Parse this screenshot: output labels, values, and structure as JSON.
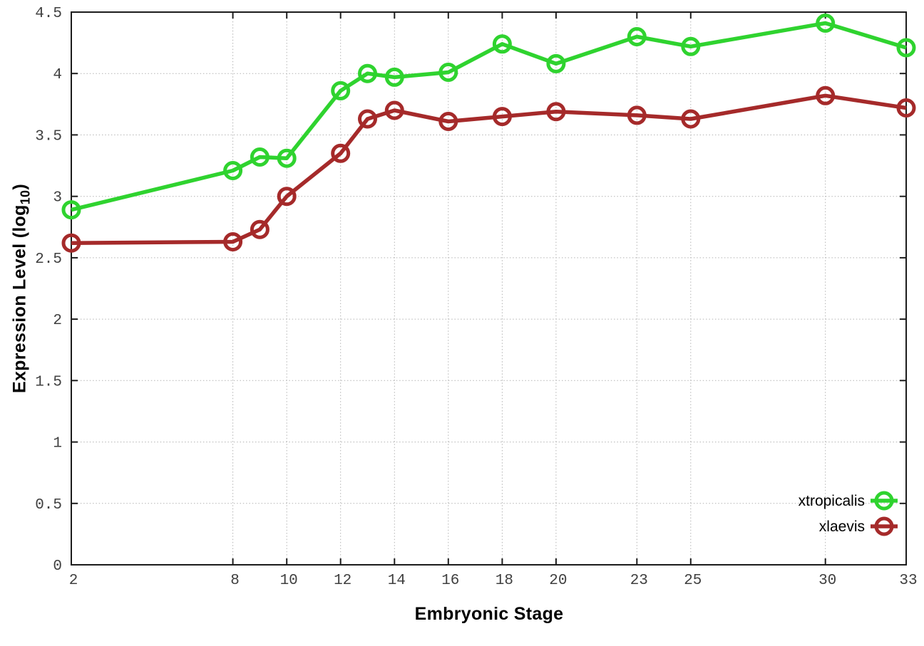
{
  "chart_data": {
    "type": "line",
    "title": "",
    "xlabel": "Embryonic Stage",
    "ylabel": {
      "prefix": "Expression Level (log",
      "sub": "10",
      "suffix": ")"
    },
    "xlim": [
      2,
      33
    ],
    "ylim": [
      0,
      4.5
    ],
    "grid": true,
    "legend_position": "inside-bottom-right",
    "x_ticks": [
      2,
      8,
      10,
      12,
      14,
      16,
      18,
      20,
      23,
      25,
      30,
      33
    ],
    "x_tick_labels": [
      "2",
      "8",
      "10",
      "12",
      "14",
      "16",
      "18",
      "20",
      "23",
      "25",
      "30",
      "33"
    ],
    "y_ticks": [
      0,
      0.5,
      1,
      1.5,
      2,
      2.5,
      3,
      3.5,
      4,
      4.5
    ],
    "y_tick_labels": [
      "0",
      "0.5",
      "1",
      "1.5",
      "2",
      "2.5",
      "3",
      "3.5",
      "4",
      "4.5"
    ],
    "series": [
      {
        "name": "xtropicalis",
        "color": "#2fd32f",
        "marker": "open-circle",
        "points": [
          [
            2,
            2.89
          ],
          [
            8,
            3.21
          ],
          [
            9,
            3.32
          ],
          [
            10,
            3.31
          ],
          [
            12,
            3.86
          ],
          [
            13,
            4.0
          ],
          [
            14,
            3.97
          ],
          [
            16,
            4.01
          ],
          [
            18,
            4.24
          ],
          [
            20,
            4.08
          ],
          [
            23,
            4.3
          ],
          [
            25,
            4.22
          ],
          [
            30,
            4.41
          ],
          [
            33,
            4.21
          ]
        ]
      },
      {
        "name": "xlaevis",
        "color": "#a52a2a",
        "marker": "open-circle",
        "points": [
          [
            2,
            2.62
          ],
          [
            8,
            2.63
          ],
          [
            9,
            2.73
          ],
          [
            10,
            3.0
          ],
          [
            12,
            3.35
          ],
          [
            13,
            3.63
          ],
          [
            14,
            3.7
          ],
          [
            16,
            3.61
          ],
          [
            18,
            3.65
          ],
          [
            20,
            3.69
          ],
          [
            23,
            3.66
          ],
          [
            25,
            3.63
          ],
          [
            30,
            3.82
          ],
          [
            33,
            3.72
          ]
        ]
      }
    ]
  },
  "colors": {
    "background": "#ffffff",
    "border": "#1c1c1c",
    "grid": "#b3b3b3",
    "tick_label": "#404040",
    "axis_title": "#000000",
    "legend_text": "#000000"
  }
}
